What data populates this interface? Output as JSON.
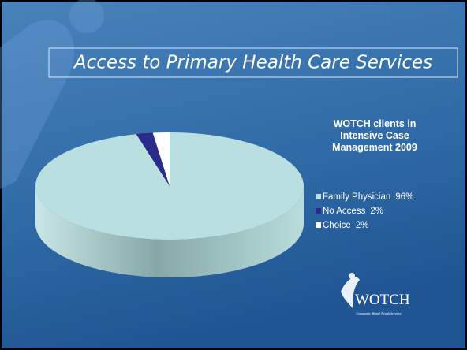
{
  "slide_title": "Access to Primary Health Care Services",
  "logo": {
    "name": "WOTCH",
    "tagline": "Community Mental Health Services"
  },
  "chart_data": {
    "type": "pie",
    "title": "WOTCH clients  in Intensive Case Management  2009",
    "categories": [
      "Family Physician",
      "No Access",
      "Choice"
    ],
    "values": [
      96,
      2,
      2
    ],
    "value_labels": [
      "96%",
      "2%",
      "2%"
    ],
    "colors": [
      "#b9dfe0",
      "#2b2b8a",
      "#ffffff"
    ],
    "legend": "right"
  }
}
